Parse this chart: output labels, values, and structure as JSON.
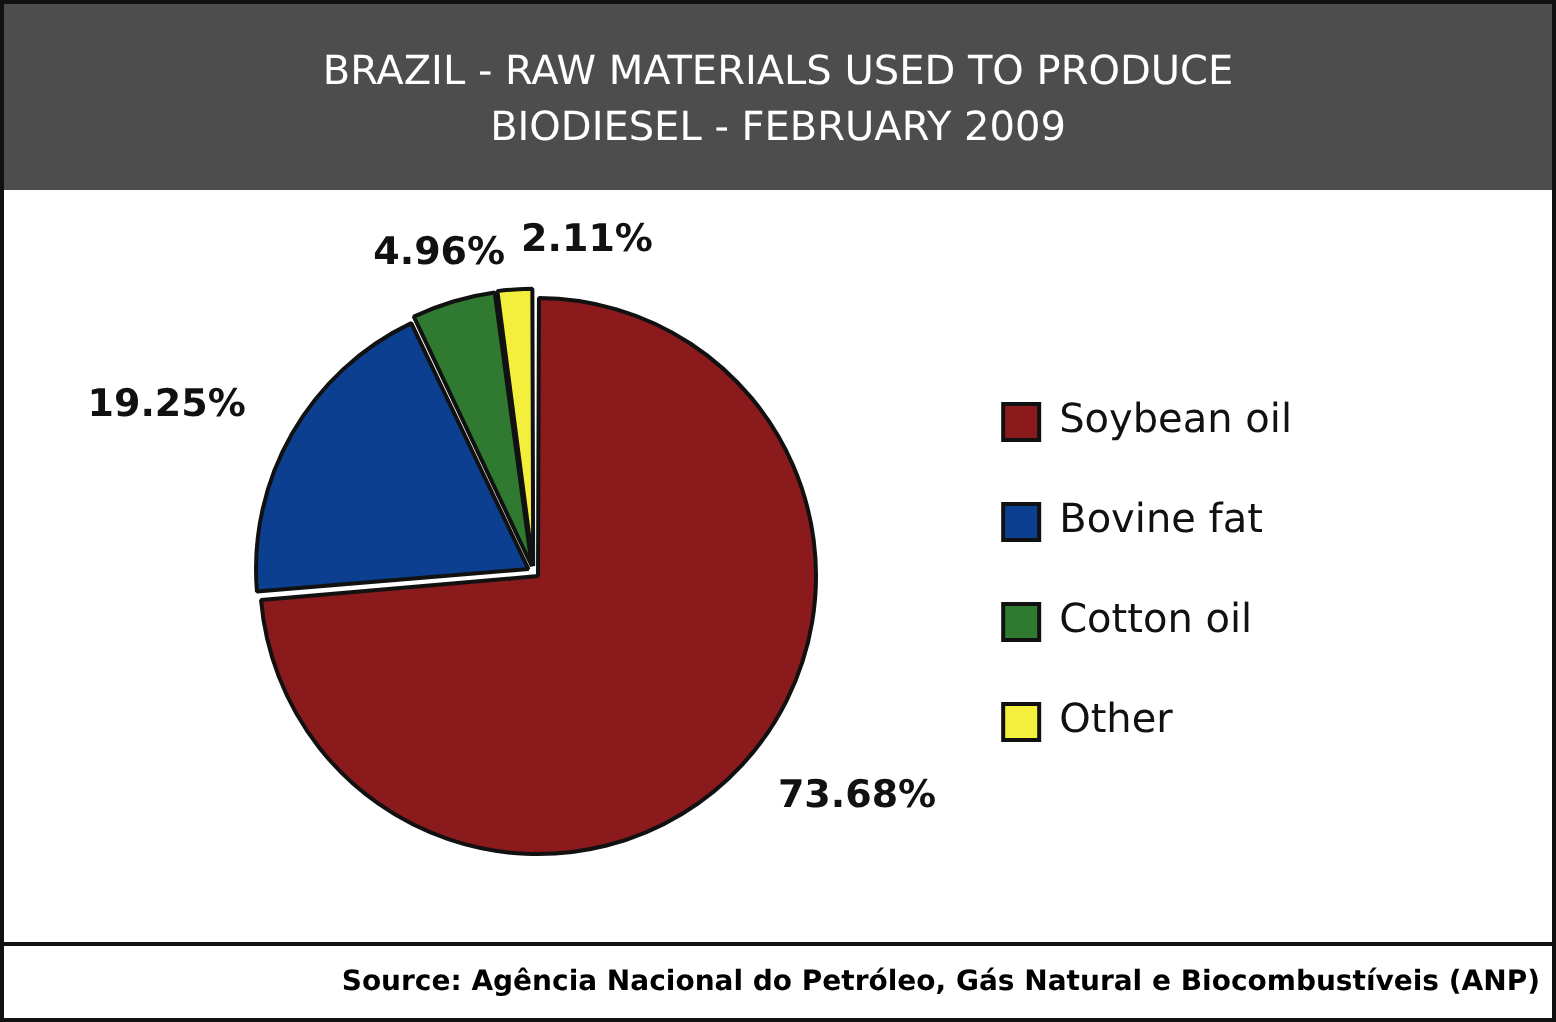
{
  "chart_data": {
    "type": "pie",
    "title": "BRAZIL - RAW MATERIALS USED TO PRODUCE BIODIESEL - FEBRUARY 2009",
    "categories": [
      "Soybean oil",
      "Bovine fat",
      "Cotton oil",
      "Other"
    ],
    "values": [
      73.68,
      19.25,
      4.96,
      2.11
    ],
    "colors": [
      "#8b1a1c",
      "#0c3f8f",
      "#2f7a30",
      "#f4ee3c"
    ],
    "value_labels": [
      "73.68%",
      "19.25%",
      "4.96%",
      "2.11%"
    ],
    "legend": "right",
    "annotations": [
      "Source: Agência Nacional do Petróleo, Gás Natural e Biocombustíveis (ANP)"
    ]
  }
}
